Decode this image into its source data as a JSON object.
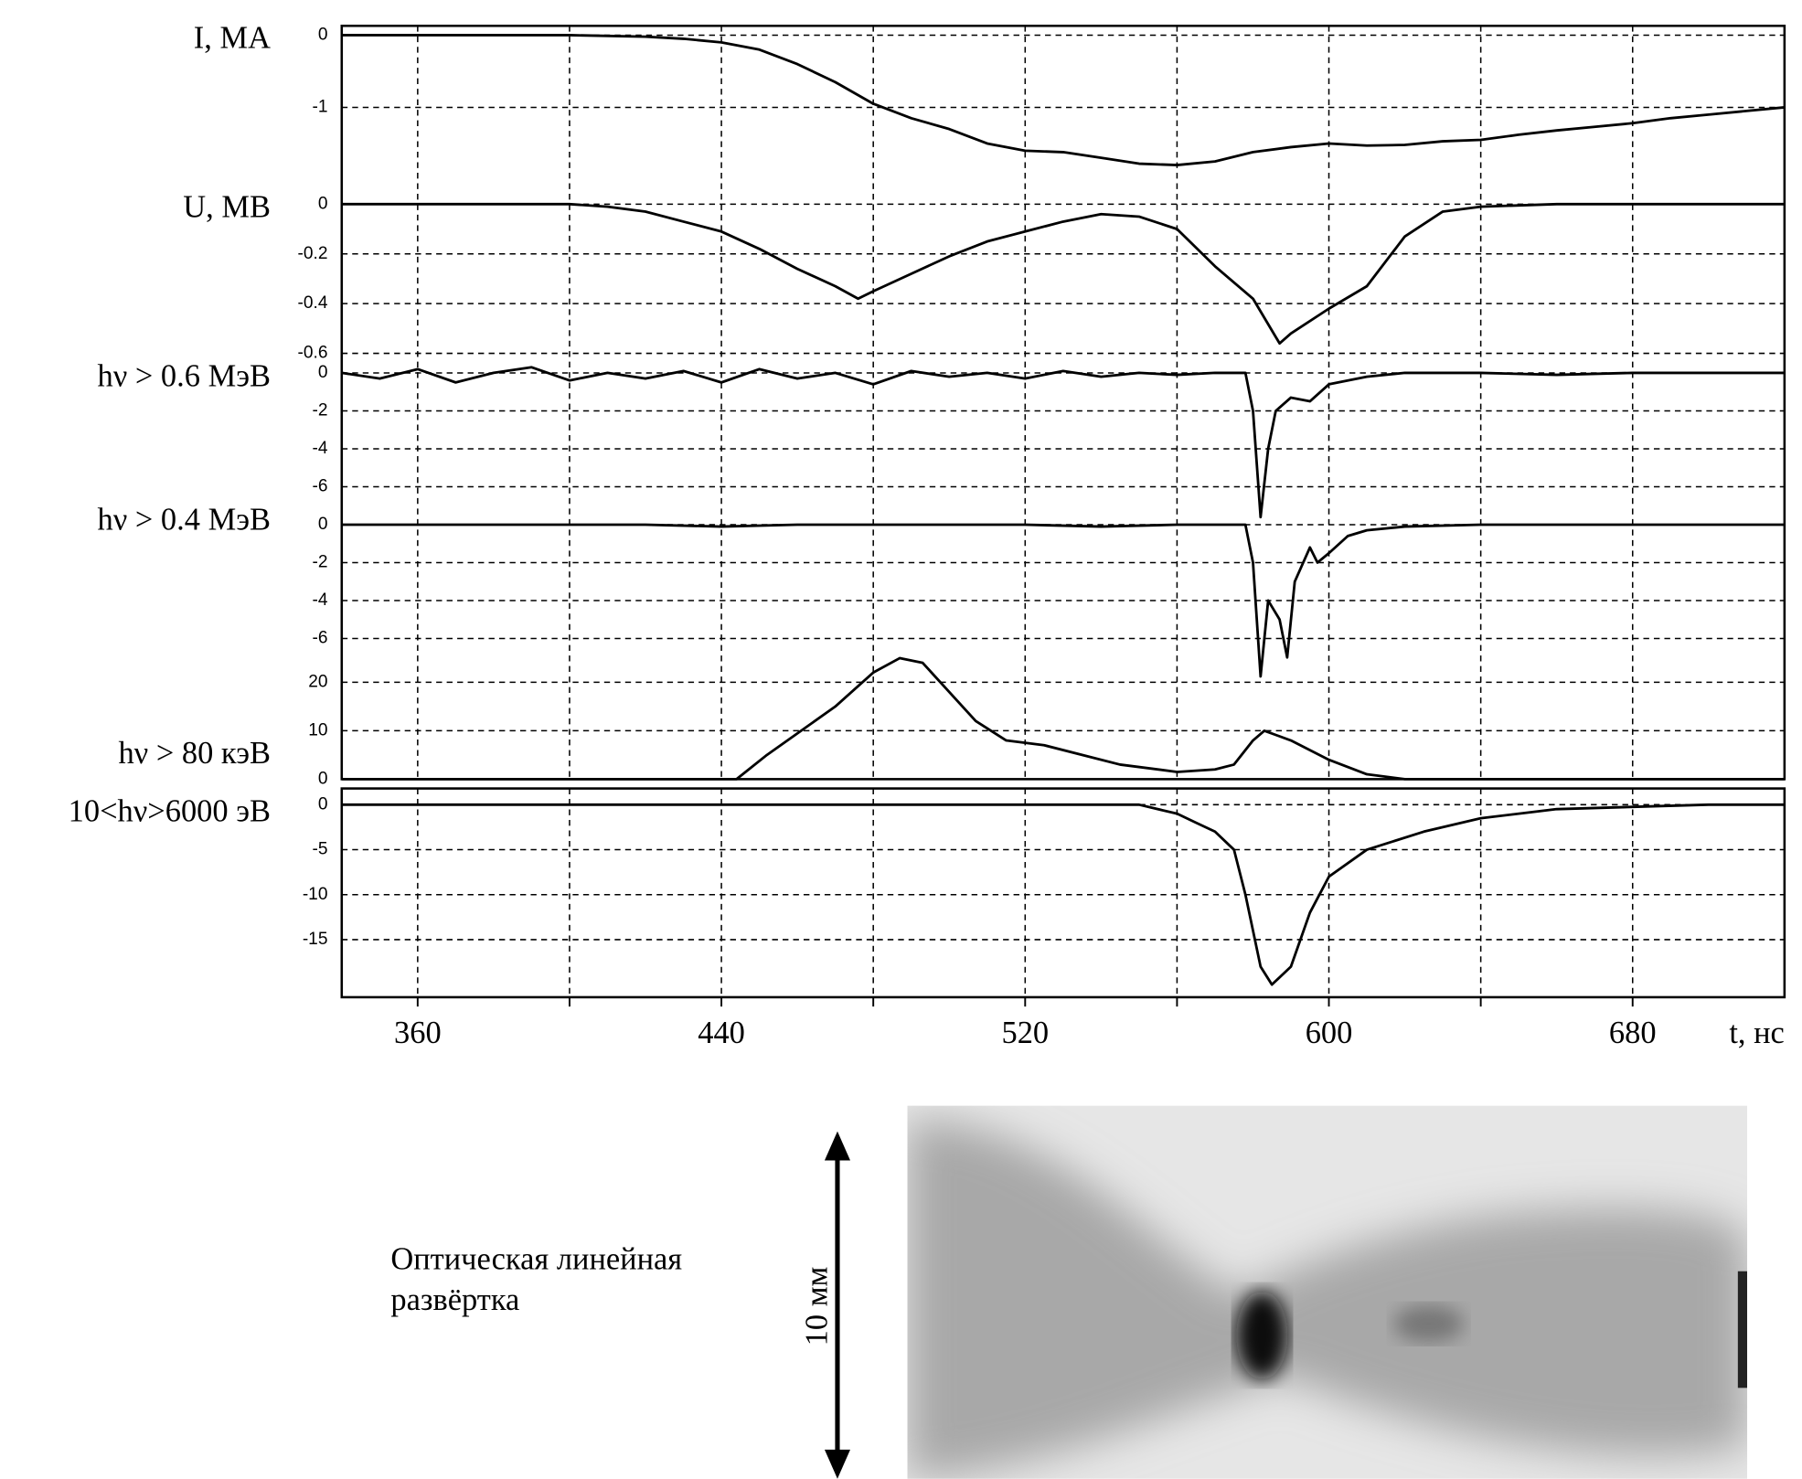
{
  "chart_data": [
    {
      "type": "line",
      "ylabel": "I, МА",
      "color": "#000000",
      "grid": true,
      "xlim": [
        340,
        720
      ],
      "ylim": [
        -2.1,
        0.13
      ],
      "yticks": [
        0,
        -1
      ],
      "x": [
        340,
        360,
        380,
        400,
        420,
        430,
        440,
        450,
        460,
        470,
        480,
        490,
        500,
        510,
        520,
        530,
        540,
        550,
        560,
        570,
        580,
        590,
        600,
        610,
        620,
        630,
        640,
        650,
        660,
        670,
        680,
        690,
        700,
        710,
        720
      ],
      "values": [
        0,
        0,
        0,
        0,
        -0.02,
        -0.05,
        -0.1,
        -0.2,
        -0.4,
        -0.65,
        -0.95,
        -1.15,
        -1.3,
        -1.5,
        -1.6,
        -1.62,
        -1.7,
        -1.78,
        -1.8,
        -1.75,
        -1.62,
        -1.55,
        -1.5,
        -1.53,
        -1.52,
        -1.47,
        -1.45,
        -1.38,
        -1.32,
        -1.27,
        -1.22,
        -1.15,
        -1.1,
        -1.05,
        -1
      ]
    },
    {
      "type": "line",
      "ylabel": "U, МВ",
      "color": "#000000",
      "grid": true,
      "xlim": [
        340,
        720
      ],
      "ylim": [
        -0.61,
        0.07
      ],
      "yticks": [
        0,
        -0.2,
        -0.4,
        -0.6
      ],
      "x": [
        340,
        360,
        380,
        400,
        410,
        420,
        430,
        440,
        450,
        460,
        470,
        476,
        480,
        490,
        500,
        510,
        520,
        530,
        540,
        550,
        560,
        570,
        580,
        587,
        590,
        600,
        610,
        620,
        630,
        640,
        660,
        680,
        700,
        720
      ],
      "values": [
        0,
        0,
        0,
        0,
        -0.01,
        -0.03,
        -0.07,
        -0.11,
        -0.18,
        -0.26,
        -0.33,
        -0.38,
        -0.35,
        -0.28,
        -0.21,
        -0.15,
        -0.11,
        -0.07,
        -0.04,
        -0.05,
        -0.1,
        -0.25,
        -0.38,
        -0.56,
        -0.52,
        -0.42,
        -0.33,
        -0.13,
        -0.03,
        -0.01,
        0,
        0,
        0,
        0
      ]
    },
    {
      "type": "line",
      "ylabel": "hν > 0.6 МэВ",
      "color": "#000000",
      "grid": true,
      "xlim": [
        340,
        720
      ],
      "ylim": [
        -7.4,
        0.9
      ],
      "yticks": [
        0,
        -2,
        -4,
        -6
      ],
      "x": [
        340,
        350,
        360,
        370,
        380,
        390,
        400,
        410,
        420,
        430,
        440,
        450,
        460,
        470,
        480,
        490,
        500,
        510,
        520,
        530,
        540,
        550,
        560,
        570,
        578,
        580,
        582,
        584,
        586,
        590,
        595,
        600,
        610,
        620,
        640,
        660,
        680,
        700,
        720
      ],
      "values": [
        0,
        -0.3,
        0.2,
        -0.5,
        0,
        0.3,
        -0.4,
        0,
        -0.3,
        0.1,
        -0.5,
        0.2,
        -0.3,
        0,
        -0.6,
        0.1,
        -0.2,
        0,
        -0.3,
        0.1,
        -0.2,
        0,
        -0.1,
        0,
        0,
        -2,
        -7.6,
        -4,
        -2,
        -1.3,
        -1.5,
        -0.6,
        -0.2,
        0,
        0,
        -0.1,
        0,
        0,
        0
      ]
    },
    {
      "type": "line",
      "ylabel": "hν > 0.4 МэВ",
      "color": "#000000",
      "grid": true,
      "xlim": [
        340,
        720
      ],
      "ylim": [
        -7.7,
        0.6
      ],
      "yticks": [
        0,
        -2,
        -4,
        -6
      ],
      "x": [
        340,
        360,
        380,
        400,
        420,
        440,
        460,
        480,
        500,
        520,
        540,
        560,
        578,
        580,
        582,
        584,
        587,
        589,
        591,
        595,
        597,
        600,
        605,
        610,
        620,
        640,
        660,
        680,
        700,
        720
      ],
      "values": [
        0,
        0,
        0,
        0,
        0,
        -0.1,
        0,
        0,
        0,
        0,
        -0.1,
        0,
        0,
        -2,
        -8,
        -4,
        -5,
        -7,
        -3,
        -1.2,
        -2,
        -1.5,
        -0.6,
        -0.3,
        -0.1,
        0,
        0,
        0,
        0,
        0
      ]
    },
    {
      "type": "line",
      "ylabel": "hν > 80 кэВ",
      "color": "#000000",
      "grid": true,
      "xlim": [
        340,
        720
      ],
      "ylim": [
        0,
        26
      ],
      "yticks": [
        0,
        10,
        20
      ],
      "x": [
        340,
        400,
        444,
        452,
        470,
        480,
        487,
        493,
        500,
        507,
        515,
        525,
        535,
        545,
        560,
        570,
        575,
        580,
        583,
        590,
        600,
        610,
        620,
        660,
        720
      ],
      "values": [
        0,
        0,
        0,
        5,
        15,
        22,
        25,
        24,
        18,
        12,
        8,
        7,
        5,
        3,
        1.5,
        2,
        3,
        8,
        10,
        8,
        4,
        1,
        0,
        0,
        0
      ]
    },
    {
      "type": "line",
      "ylabel": "10<hν>6000 эВ",
      "color": "#000000",
      "grid": true,
      "xlim": [
        340,
        720
      ],
      "ylim": [
        -21.4,
        1.8
      ],
      "yticks": [
        0,
        -5,
        -10,
        -15
      ],
      "xticks": [
        360,
        {
          "value": 400,
          "label": null
        },
        440,
        {
          "value": 480,
          "label": null
        },
        520,
        {
          "value": 560,
          "label": null
        },
        600,
        {
          "value": 640,
          "label": null
        },
        680
      ],
      "xlabel": "t, нс",
      "x": [
        340,
        400,
        450,
        500,
        550,
        560,
        565,
        570,
        575,
        578,
        582,
        585,
        590,
        595,
        600,
        610,
        625,
        640,
        660,
        700,
        720
      ],
      "values": [
        0,
        0,
        0,
        0,
        0,
        -1,
        -2,
        -3,
        -5,
        -10,
        -18,
        -20,
        -18,
        -12,
        -8,
        -5,
        -3,
        -1.5,
        -0.5,
        0,
        0
      ]
    }
  ],
  "streak_image": {
    "caption_line1": "Оптическая линейная",
    "caption_line2": "развёртка",
    "scale_label": "10 мм"
  }
}
